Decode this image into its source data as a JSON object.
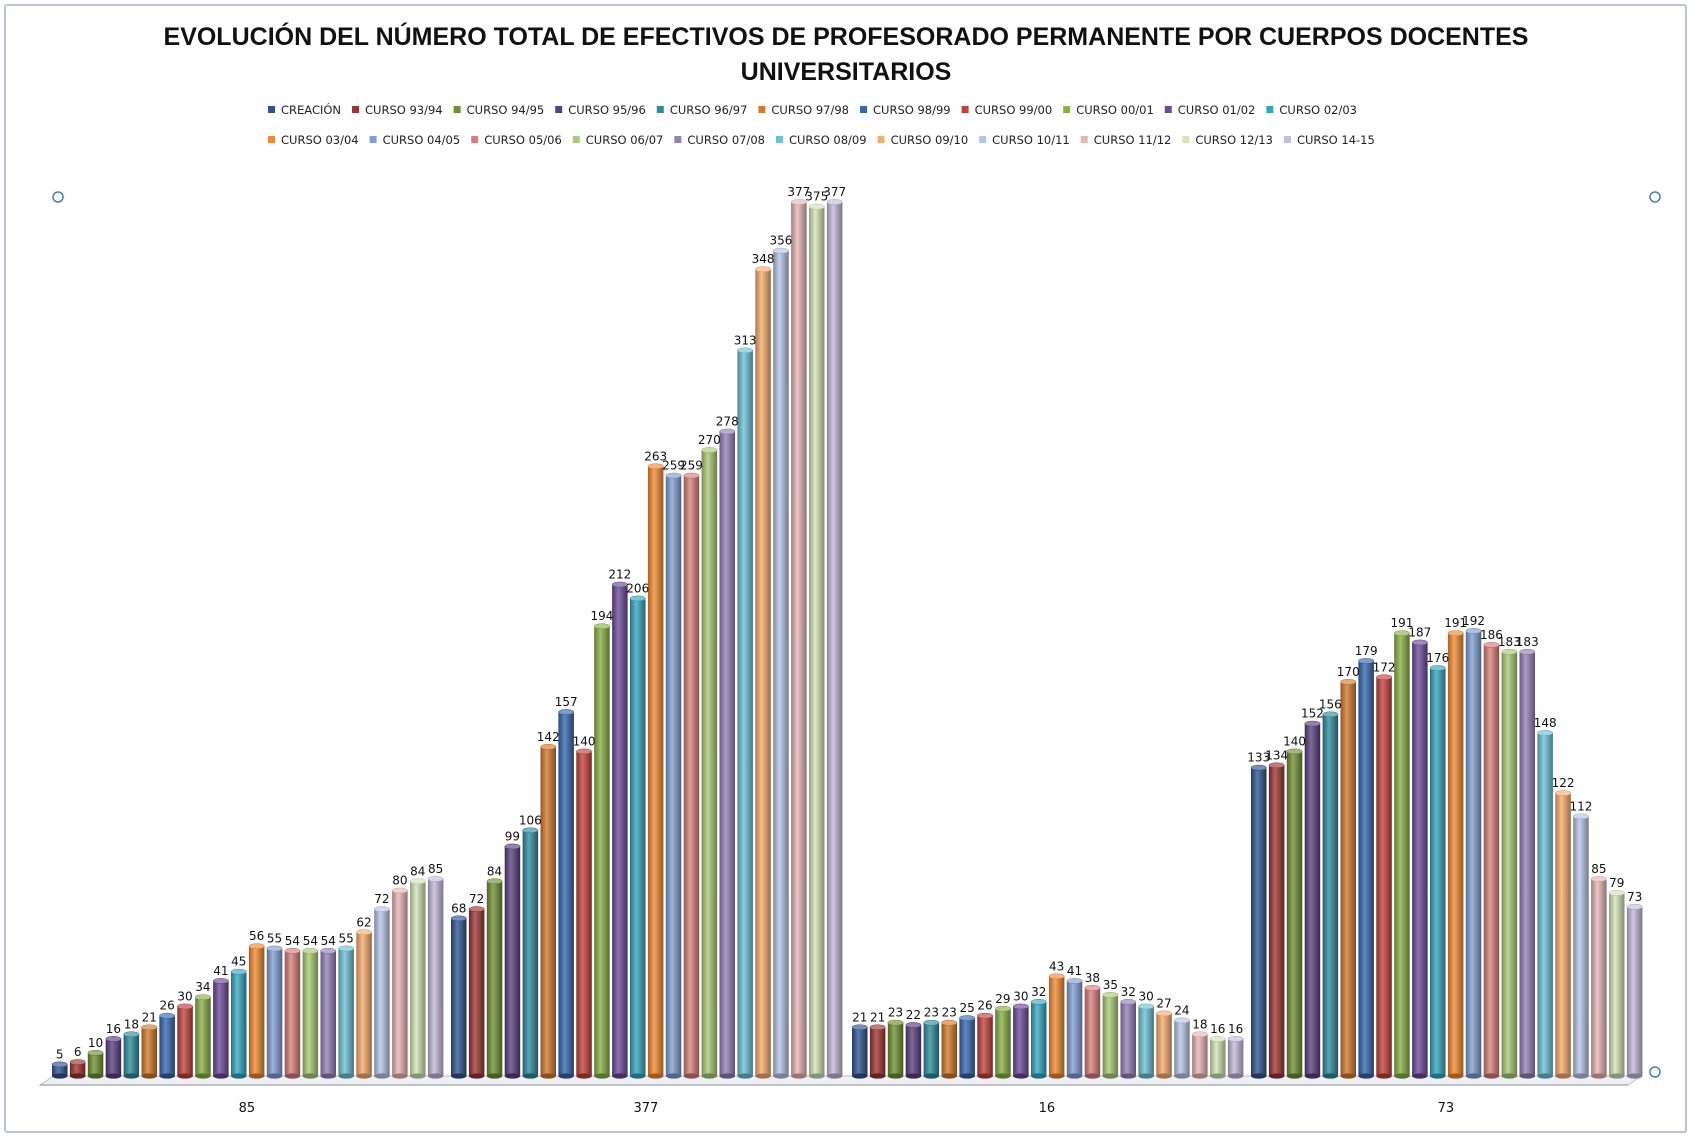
{
  "chart_data": {
    "type": "bar",
    "title_line1": "EVOLUCIÓN DEL NÚMERO TOTAL DE EFECTIVOS DE PROFESORADO PERMANENTE POR CUERPOS DOCENTES",
    "title_line2": "UNIVERSITARIOS",
    "categories": [
      "85",
      "377",
      "16",
      "73"
    ],
    "grid": false,
    "legend_position": "top",
    "style": "3d-cylinder",
    "series": [
      {
        "name": "CREACIÓN",
        "color": "#2e5490",
        "values": [
          5,
          68,
          21,
          133
        ]
      },
      {
        "name": "CURSO 93/94",
        "color": "#9c3532",
        "values": [
          6,
          72,
          21,
          134
        ]
      },
      {
        "name": "CURSO 94/95",
        "color": "#6f8f33",
        "values": [
          10,
          84,
          23,
          140
        ]
      },
      {
        "name": "CURSO 95/96",
        "color": "#5a3f80",
        "values": [
          16,
          99,
          22,
          152
        ]
      },
      {
        "name": "CURSO 96/97",
        "color": "#2f8a9e",
        "values": [
          18,
          106,
          23,
          156
        ]
      },
      {
        "name": "CURSO 97/98",
        "color": "#d57a2c",
        "values": [
          21,
          142,
          23,
          170
        ]
      },
      {
        "name": "CURSO 98/99",
        "color": "#3567b0",
        "values": [
          26,
          157,
          25,
          179
        ]
      },
      {
        "name": "CURSO 99/00",
        "color": "#c4403c",
        "values": [
          30,
          140,
          26,
          172
        ]
      },
      {
        "name": "CURSO 00/01",
        "color": "#88b143",
        "values": [
          34,
          194,
          29,
          191
        ]
      },
      {
        "name": "CURSO 01/02",
        "color": "#6b4a98",
        "values": [
          41,
          212,
          30,
          187
        ]
      },
      {
        "name": "CURSO 02/03",
        "color": "#34a6bf",
        "values": [
          45,
          206,
          32,
          176
        ]
      },
      {
        "name": "CURSO 03/04",
        "color": "#f08a30",
        "values": [
          56,
          263,
          43,
          191
        ]
      },
      {
        "name": "CURSO 04/05",
        "color": "#7f9fd2",
        "values": [
          55,
          259,
          41,
          192
        ]
      },
      {
        "name": "CURSO 05/06",
        "color": "#d87d7b",
        "values": [
          54,
          259,
          38,
          186
        ]
      },
      {
        "name": "CURSO 06/07",
        "color": "#aacb72",
        "values": [
          54,
          270,
          35,
          183
        ]
      },
      {
        "name": "CURSO 07/08",
        "color": "#9580b8",
        "values": [
          54,
          278,
          32,
          183
        ]
      },
      {
        "name": "CURSO 08/09",
        "color": "#6cc2d6",
        "values": [
          55,
          313,
          30,
          148
        ]
      },
      {
        "name": "CURSO 09/10",
        "color": "#f7ad6e",
        "values": [
          62,
          348,
          27,
          122
        ]
      },
      {
        "name": "CURSO 10/11",
        "color": "#b7c5e6",
        "values": [
          72,
          356,
          24,
          112
        ]
      },
      {
        "name": "CURSO 11/12",
        "color": "#e8b6b5",
        "values": [
          80,
          377,
          18,
          85
        ]
      },
      {
        "name": "CURSO 12/13",
        "color": "#d3e4b6",
        "values": [
          84,
          375,
          16,
          79
        ]
      },
      {
        "name": "CURSO 14-15",
        "color": "#c6b9da",
        "values": [
          85,
          377,
          16,
          73
        ]
      }
    ]
  }
}
